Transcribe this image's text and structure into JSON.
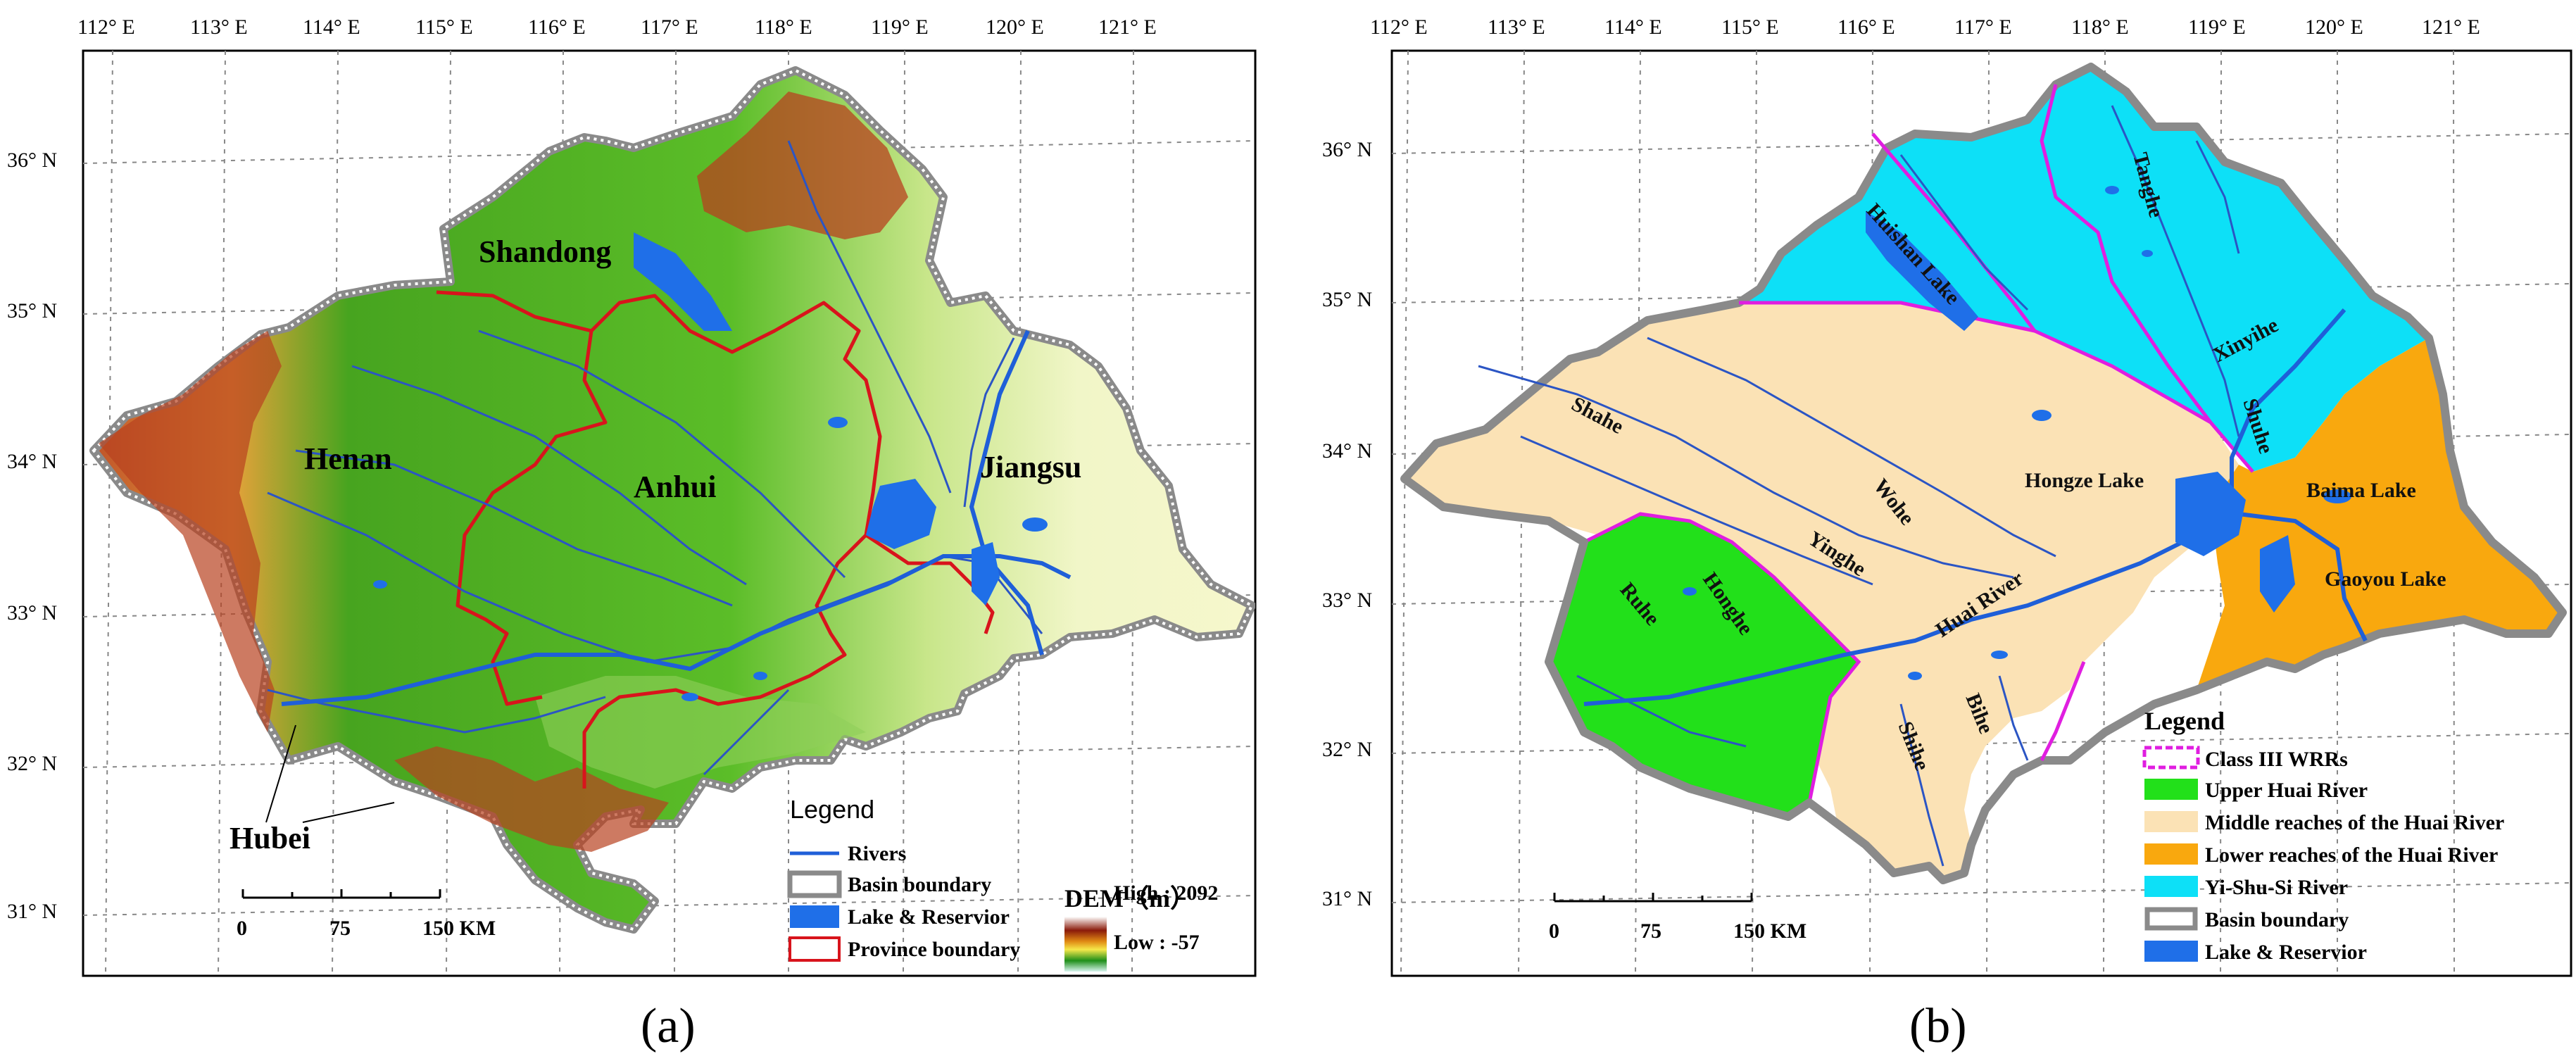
{
  "panel_a": {
    "lon_labels": [
      "112° E",
      "113° E",
      "114° E",
      "115° E",
      "116° E",
      "117° E",
      "118° E",
      "119° E",
      "120° E",
      "121° E"
    ],
    "lat_labels": [
      "36° N",
      "35° N",
      "34° N",
      "33° N",
      "32° N",
      "31° N"
    ],
    "province_labels": [
      "Shandong",
      "Henan",
      "Anhui",
      "Jiangsu",
      "Hubei"
    ],
    "legend": {
      "title": "Legend",
      "items": [
        "Rivers",
        "Basin boundary",
        "Lake & Reservior",
        "Province boundary"
      ],
      "dem_title": "DEM（m）",
      "dem_high": "High : 2092",
      "dem_low": "Low : -57"
    },
    "scale": {
      "ticks": [
        "0",
        "75",
        "150 KM"
      ]
    },
    "caption": "(a)"
  },
  "panel_b": {
    "lon_labels": [
      "112° E",
      "113° E",
      "114° E",
      "115° E",
      "116° E",
      "117° E",
      "118° E",
      "119° E",
      "120° E",
      "121° E"
    ],
    "lat_labels": [
      "36° N",
      "35° N",
      "34° N",
      "33° N",
      "32° N",
      "31° N"
    ],
    "feature_labels": [
      "Huishan Lake",
      "Tanghe",
      "Xinyihe",
      "Shuhe",
      "Shahe",
      "Wohe",
      "Hongze Lake",
      "Baima Lake",
      "Yinghe",
      "Ruhe",
      "Honghe",
      "Huai River",
      "Gaoyou Lake",
      "Bihe",
      "Shihe"
    ],
    "legend": {
      "title": "Legend",
      "items": [
        "Class III WRRs",
        "Upper Huai River",
        "Middle reaches of the Huai River",
        "Lower reaches of the Huai River",
        "Yi-Shu-Si River",
        "Basin boundary",
        "Lake & Reservior"
      ]
    },
    "scale": {
      "ticks": [
        "0",
        "75",
        "150 KM"
      ]
    },
    "caption": "(b)"
  },
  "colors": {
    "upper": "#22e01a",
    "middle": "#fbe2b5",
    "lower": "#f9a80e",
    "yishusi": "#0de0f7",
    "lake": "#1f6fe8",
    "river": "#2b55c4",
    "province": "#d8141c",
    "wrr": "#e01ee0"
  }
}
